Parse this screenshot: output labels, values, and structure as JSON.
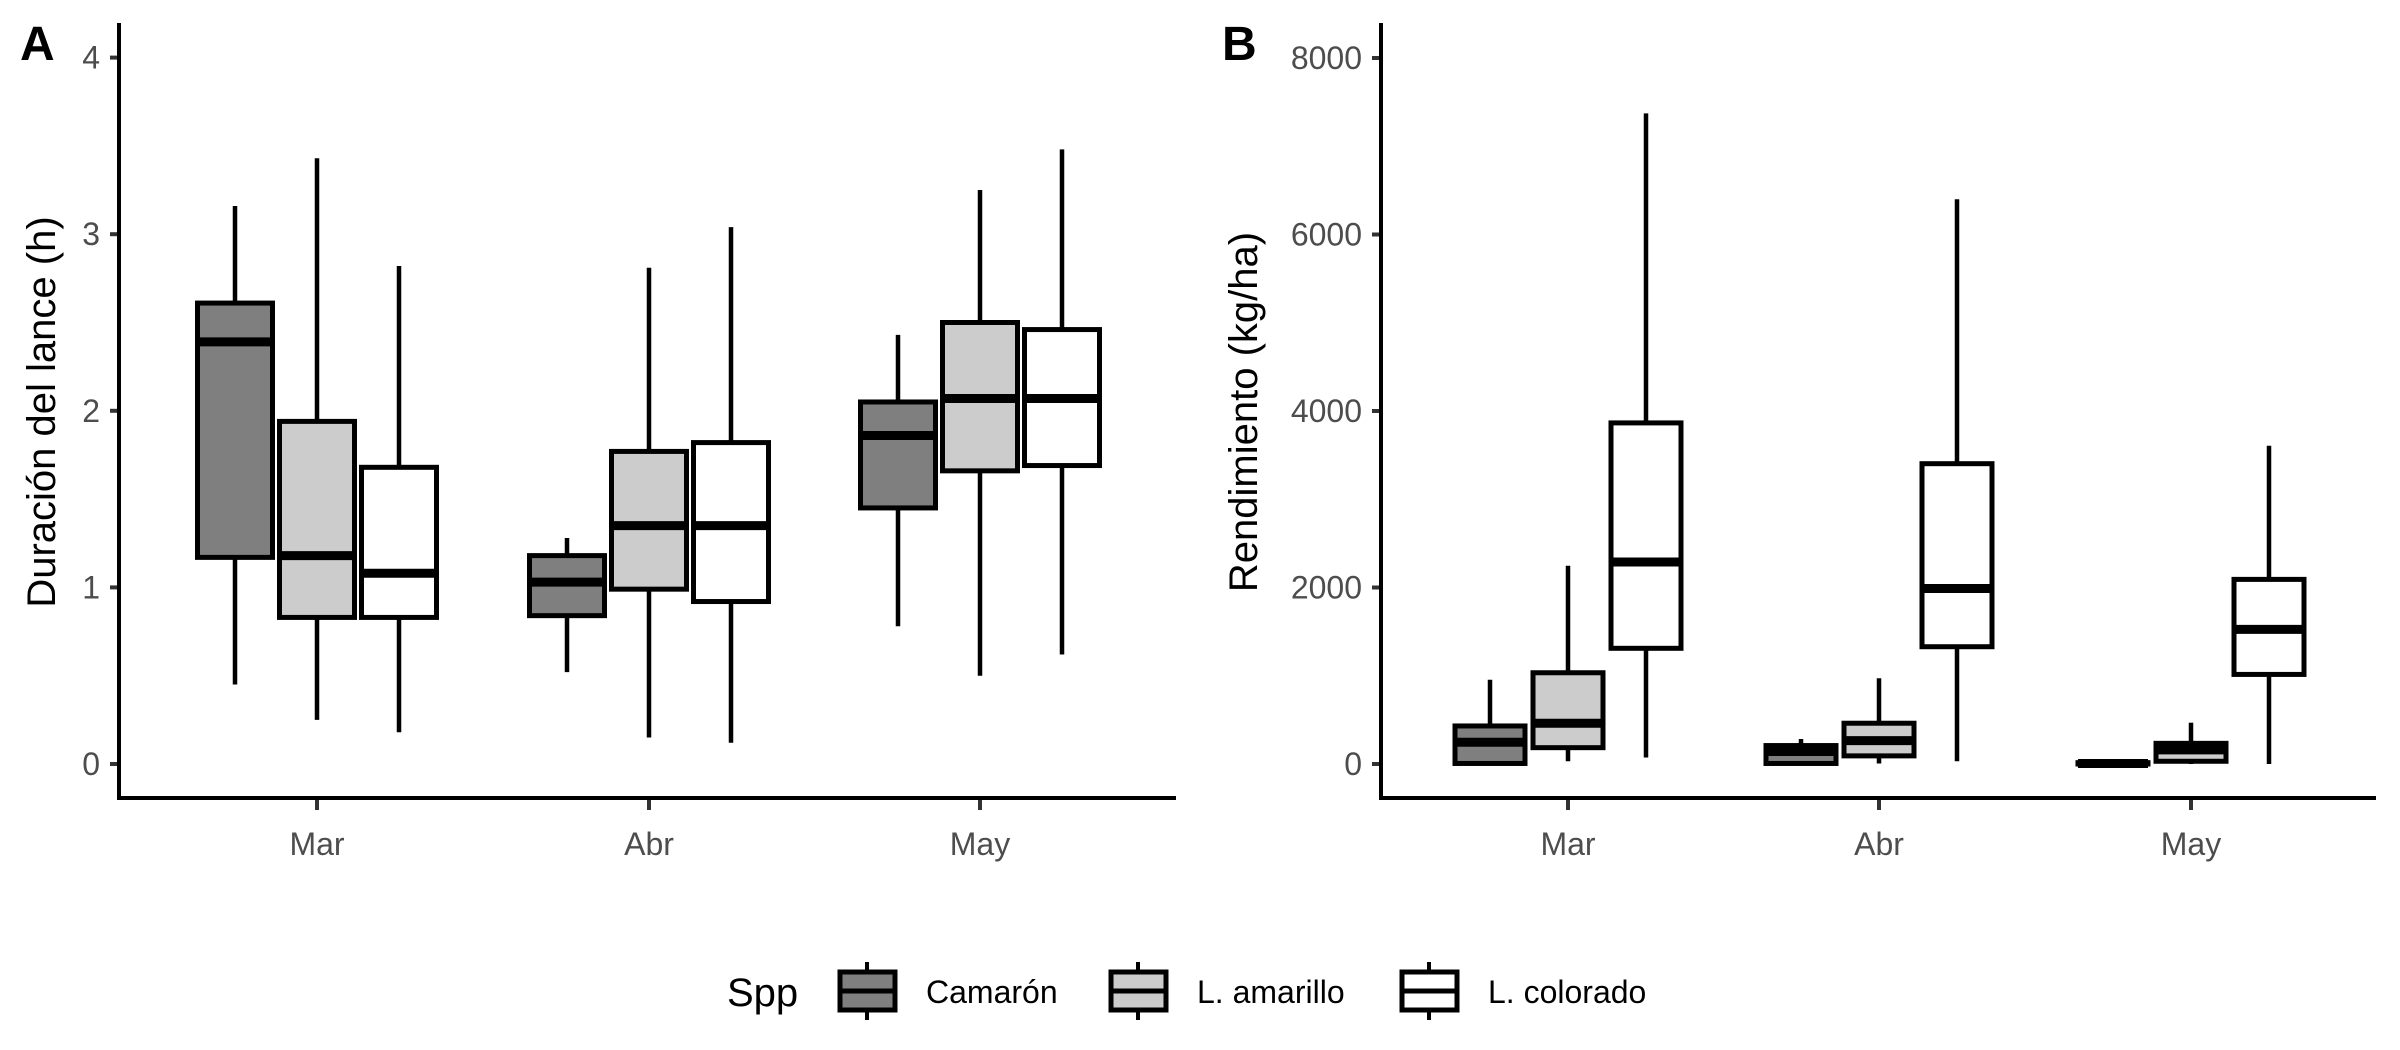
{
  "chart_data": [
    {
      "panel": "A",
      "type": "box",
      "title": "",
      "xlabel": "",
      "ylabel": "Duración del lance (h)",
      "ylim": [
        -0.2,
        4.2
      ],
      "yticks": [
        0,
        1,
        2,
        3,
        4
      ],
      "ytick_labels": [
        "0",
        "1",
        "2",
        "3",
        "4"
      ],
      "categories": [
        "Mar",
        "Abr",
        "May"
      ],
      "grid": false,
      "series": [
        {
          "name": "Camarón",
          "fill": "#7f7f7f",
          "boxes": [
            {
              "category": "Mar",
              "min": 0.45,
              "q1": 1.17,
              "median": 2.39,
              "q3": 2.61,
              "max": 3.16
            },
            {
              "category": "Abr",
              "min": 0.52,
              "q1": 0.84,
              "median": 1.03,
              "q3": 1.18,
              "max": 1.28
            },
            {
              "category": "May",
              "min": 0.78,
              "q1": 1.45,
              "median": 1.86,
              "q3": 2.05,
              "max": 2.43
            }
          ]
        },
        {
          "name": "L. amarillo",
          "fill": "#cccccc",
          "boxes": [
            {
              "category": "Mar",
              "min": 0.25,
              "q1": 0.83,
              "median": 1.18,
              "q3": 1.94,
              "max": 3.43
            },
            {
              "category": "Abr",
              "min": 0.15,
              "q1": 0.99,
              "median": 1.35,
              "q3": 1.77,
              "max": 2.81
            },
            {
              "category": "May",
              "min": 0.5,
              "q1": 1.66,
              "median": 2.07,
              "q3": 2.5,
              "max": 3.25
            }
          ]
        },
        {
          "name": "L. colorado",
          "fill": "#ffffff",
          "boxes": [
            {
              "category": "Mar",
              "min": 0.18,
              "q1": 0.83,
              "median": 1.08,
              "q3": 1.68,
              "max": 2.82
            },
            {
              "category": "Abr",
              "min": 0.12,
              "q1": 0.92,
              "median": 1.35,
              "q3": 1.82,
              "max": 3.04
            },
            {
              "category": "May",
              "min": 0.62,
              "q1": 1.69,
              "median": 2.07,
              "q3": 2.46,
              "max": 3.48
            }
          ]
        }
      ]
    },
    {
      "panel": "B",
      "type": "box",
      "title": "",
      "xlabel": "",
      "ylabel": "Rendimiento (kg/ha)",
      "ylim": [
        -400,
        8400
      ],
      "yticks": [
        0,
        2000,
        4000,
        6000,
        8000
      ],
      "ytick_labels": [
        "0",
        "2000",
        "4000",
        "6000",
        "8000"
      ],
      "categories": [
        "Mar",
        "Abr",
        "May"
      ],
      "grid": false,
      "series": [
        {
          "name": "Camarón",
          "fill": "#7f7f7f",
          "boxes": [
            {
              "category": "Mar",
              "min": 0,
              "q1": 6,
              "median": 246,
              "q3": 431,
              "max": 954
            },
            {
              "category": "Abr",
              "min": 0,
              "q1": 6,
              "median": 142,
              "q3": 209,
              "max": 283
            },
            {
              "category": "May",
              "min": 0,
              "q1": 0,
              "median": 5,
              "q3": 15,
              "max": 20
            }
          ]
        },
        {
          "name": "L. amarillo",
          "fill": "#cccccc",
          "boxes": [
            {
              "category": "Mar",
              "min": 31,
              "q1": 185,
              "median": 462,
              "q3": 1034,
              "max": 2246
            },
            {
              "category": "Abr",
              "min": 6,
              "q1": 92,
              "median": 265,
              "q3": 462,
              "max": 972
            },
            {
              "category": "May",
              "min": 0,
              "q1": 31,
              "median": 160,
              "q3": 234,
              "max": 468
            }
          ]
        },
        {
          "name": "L. colorado",
          "fill": "#ffffff",
          "boxes": [
            {
              "category": "Mar",
              "min": 74,
              "q1": 1311,
              "median": 2289,
              "q3": 3865,
              "max": 7372
            },
            {
              "category": "Abr",
              "min": 31,
              "q1": 1329,
              "median": 1988,
              "q3": 3403,
              "max": 6400
            },
            {
              "category": "May",
              "min": 0,
              "q1": 1015,
              "median": 1526,
              "q3": 2092,
              "max": 3606
            }
          ]
        }
      ]
    }
  ],
  "panels": {
    "a": {
      "tag": "A",
      "ylabel": "Duración del lance (h)",
      "x_ticks": [
        "Mar",
        "Abr",
        "May"
      ],
      "y_ticks": [
        "0",
        "1",
        "2",
        "3",
        "4"
      ]
    },
    "b": {
      "tag": "B",
      "ylabel": "Rendimiento (kg/ha)",
      "x_ticks": [
        "Mar",
        "Abr",
        "May"
      ],
      "y_ticks": [
        "0",
        "2000",
        "4000",
        "6000",
        "8000"
      ]
    }
  },
  "legend": {
    "title": "Spp",
    "position": "bottom",
    "items": [
      {
        "label": "Camarón",
        "fill": "#7f7f7f"
      },
      {
        "label": "L. amarillo",
        "fill": "#cccccc"
      },
      {
        "label": "L. colorado",
        "fill": "#ffffff"
      }
    ]
  },
  "colors": {
    "axis": "#000000",
    "tick_text": "#4d4d4d",
    "outline": "#000000"
  }
}
